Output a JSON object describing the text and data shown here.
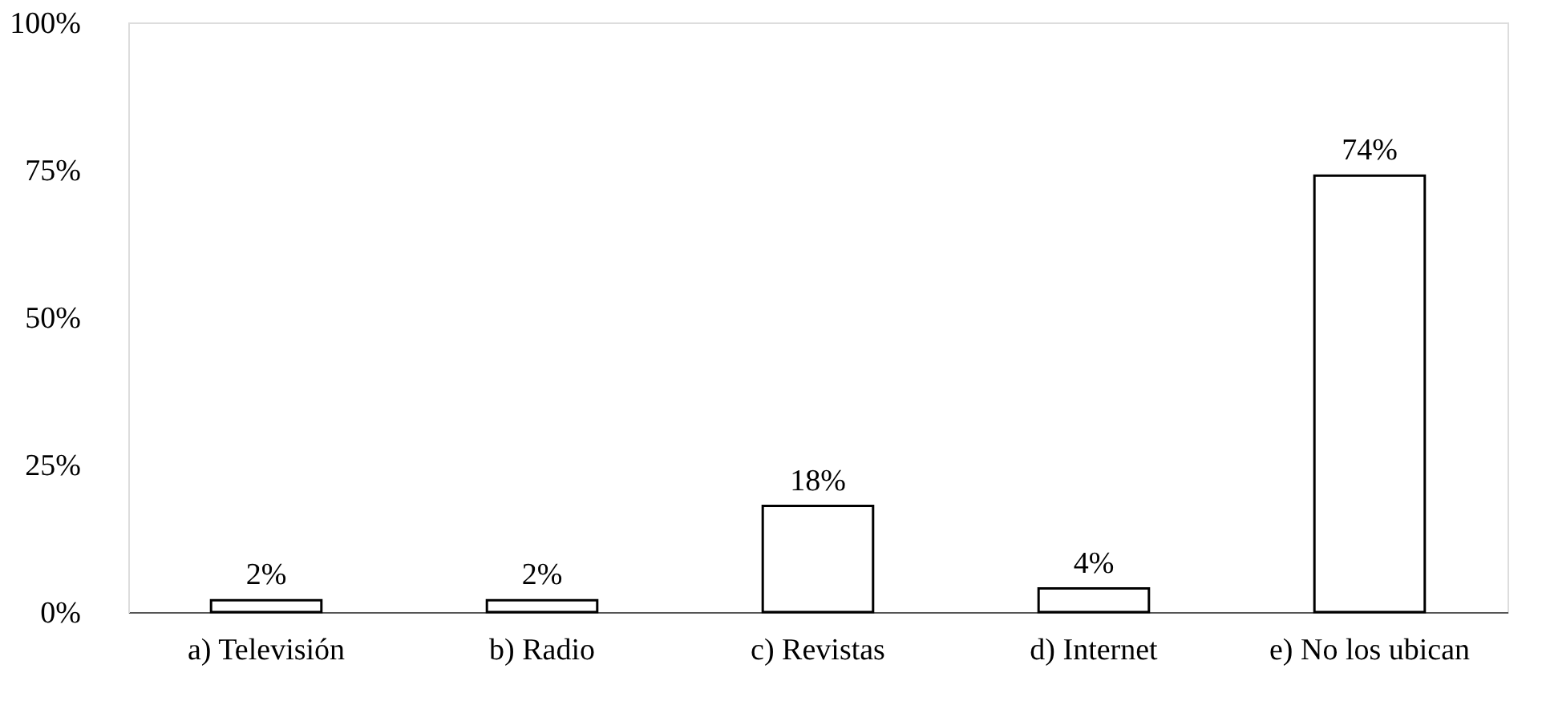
{
  "chart_data": {
    "type": "bar",
    "categories": [
      "a) Televisión",
      "b) Radio",
      "c) Revistas",
      "d) Internet",
      "e) No los ubican"
    ],
    "values": [
      2,
      2,
      18,
      4,
      74
    ],
    "value_labels": [
      "2%",
      "2%",
      "18%",
      "4%",
      "74%"
    ],
    "color": "#ffffff",
    "ylim": [
      0,
      100
    ],
    "yticks": [
      {
        "value": 0,
        "label": "0%"
      },
      {
        "value": 25,
        "label": "25%"
      },
      {
        "value": 50,
        "label": "50%"
      },
      {
        "value": 75,
        "label": "75%"
      },
      {
        "value": 100,
        "label": "100%"
      }
    ],
    "grid": false
  }
}
